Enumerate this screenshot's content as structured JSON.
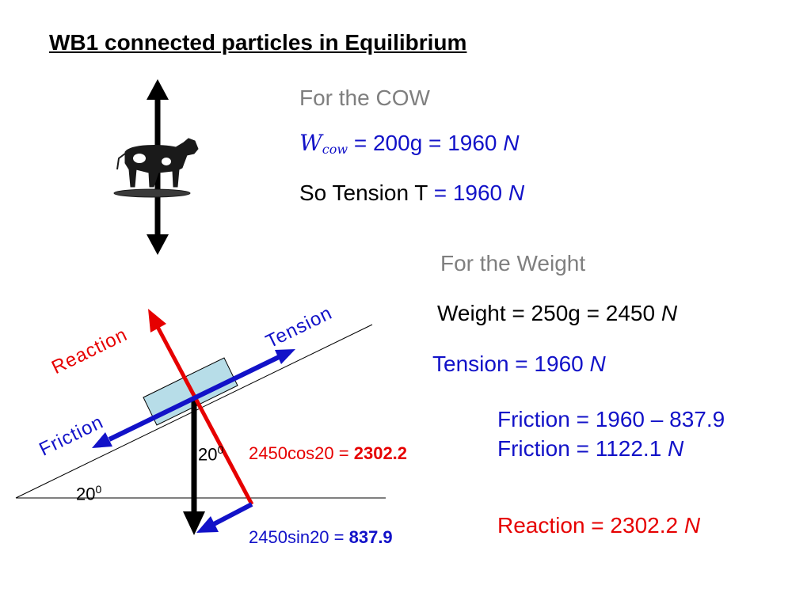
{
  "title": "WB1 connected particles in Equilibrium",
  "cow_section": {
    "heading": "For the COW",
    "w_symbol": "W",
    "w_subscript": "cow",
    "w_rest": " = 200g = 1960 ",
    "unit": "N",
    "tension_label": "So Tension T ",
    "tension_value": "= 1960 "
  },
  "weight_section": {
    "heading": "For the Weight",
    "weight_text": "Weight = 250g = 2450 ",
    "tension_text": "Tension = 1960 ",
    "unit": "N"
  },
  "friction": {
    "line1": "Friction = 1960 – 837.9",
    "line2": "Friction = 1122.1 ",
    "unit": "N"
  },
  "reaction_result": {
    "text": "Reaction = 2302.2 ",
    "unit": "N"
  },
  "diagram": {
    "label_reaction": "Reaction",
    "label_tension": "Tension",
    "label_friction": "Friction",
    "angle_inner": "20",
    "angle_slope": "20",
    "angle_sup": "0",
    "cos_component": "2450cos20 = ",
    "cos_value": "2302.2",
    "sin_component": "2450sin20 = ",
    "sin_value": "837.9"
  },
  "colors": {
    "blue": "#1212c8",
    "red": "#e60000",
    "gray": "#7f7f7f",
    "block": "#b7dde8"
  }
}
